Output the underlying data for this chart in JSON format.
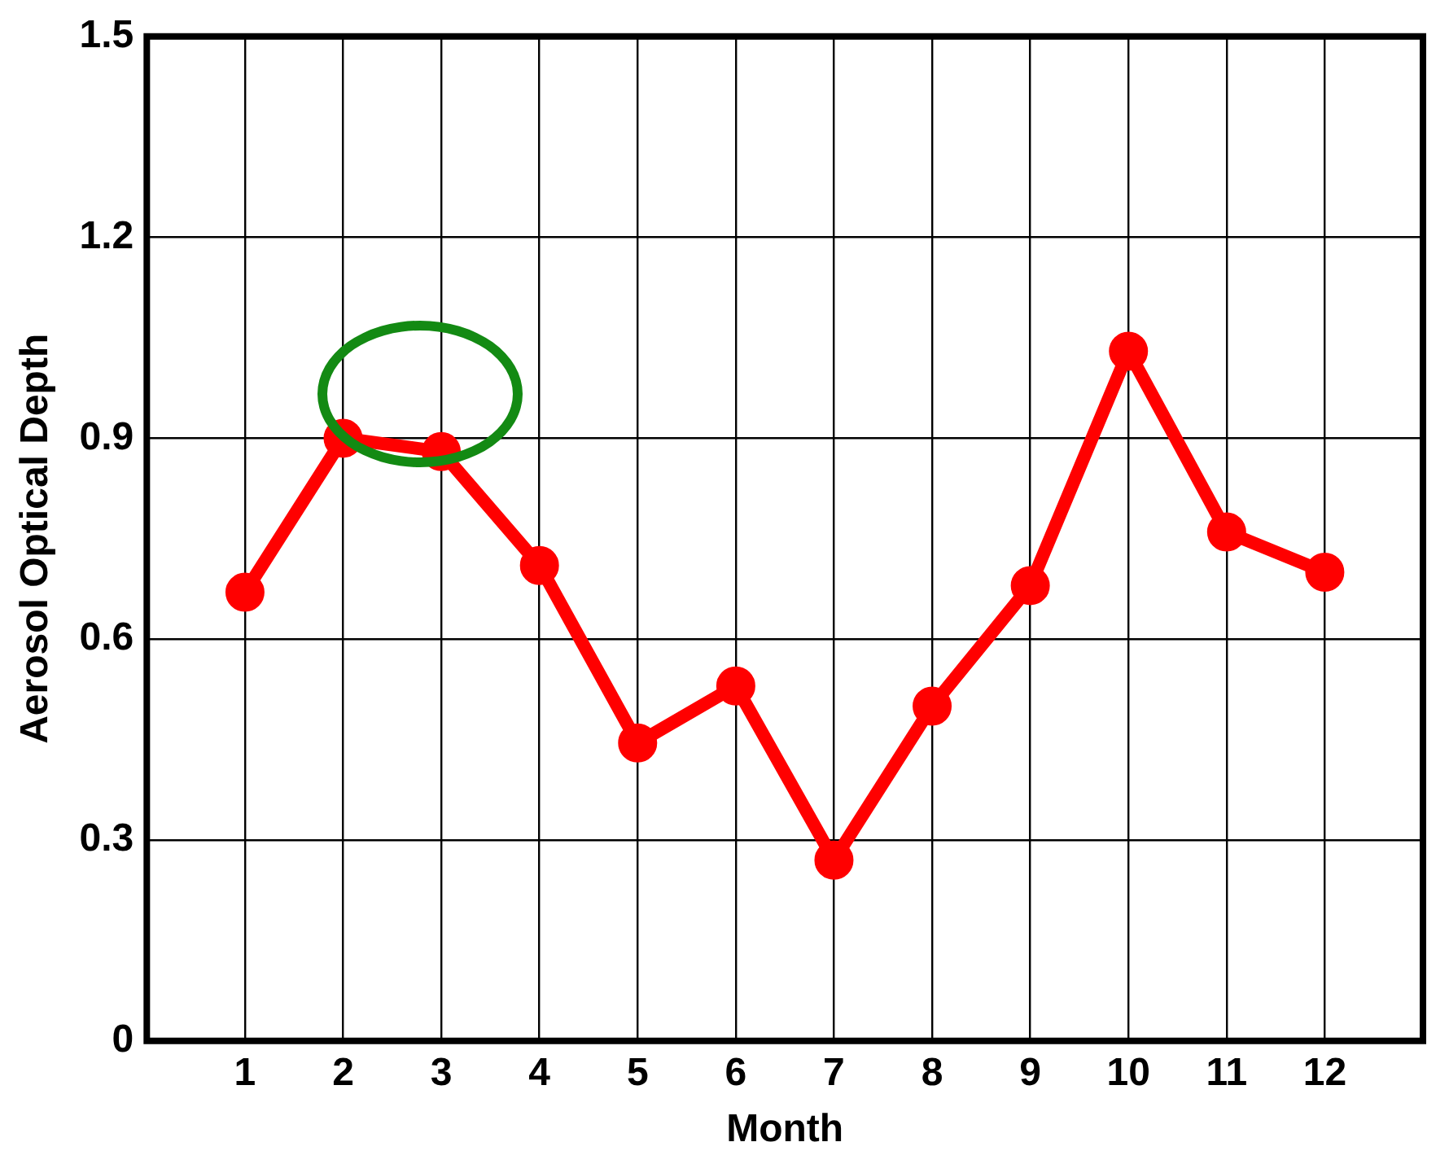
{
  "chart_data": {
    "type": "line",
    "xlabel": "Month",
    "ylabel": "Aerosol Optical Depth",
    "x": [
      1,
      2,
      3,
      4,
      5,
      6,
      7,
      8,
      9,
      10,
      11,
      12
    ],
    "series": [
      {
        "color": "#ff0000",
        "values": [
          0.67,
          0.9,
          0.88,
          0.71,
          0.445,
          0.53,
          0.27,
          0.5,
          0.68,
          1.03,
          0.76,
          0.7
        ]
      }
    ],
    "xlim": [
      0,
      13
    ],
    "xticks": [
      1,
      2,
      3,
      4,
      5,
      6,
      7,
      8,
      9,
      10,
      11,
      12
    ],
    "ylim": [
      0,
      1.5
    ],
    "yticks": [
      0,
      0.3,
      0.6,
      0.9,
      1.2,
      1.5
    ],
    "grid": true,
    "marker": "circle",
    "line_style": "solid",
    "legend": false
  }
}
